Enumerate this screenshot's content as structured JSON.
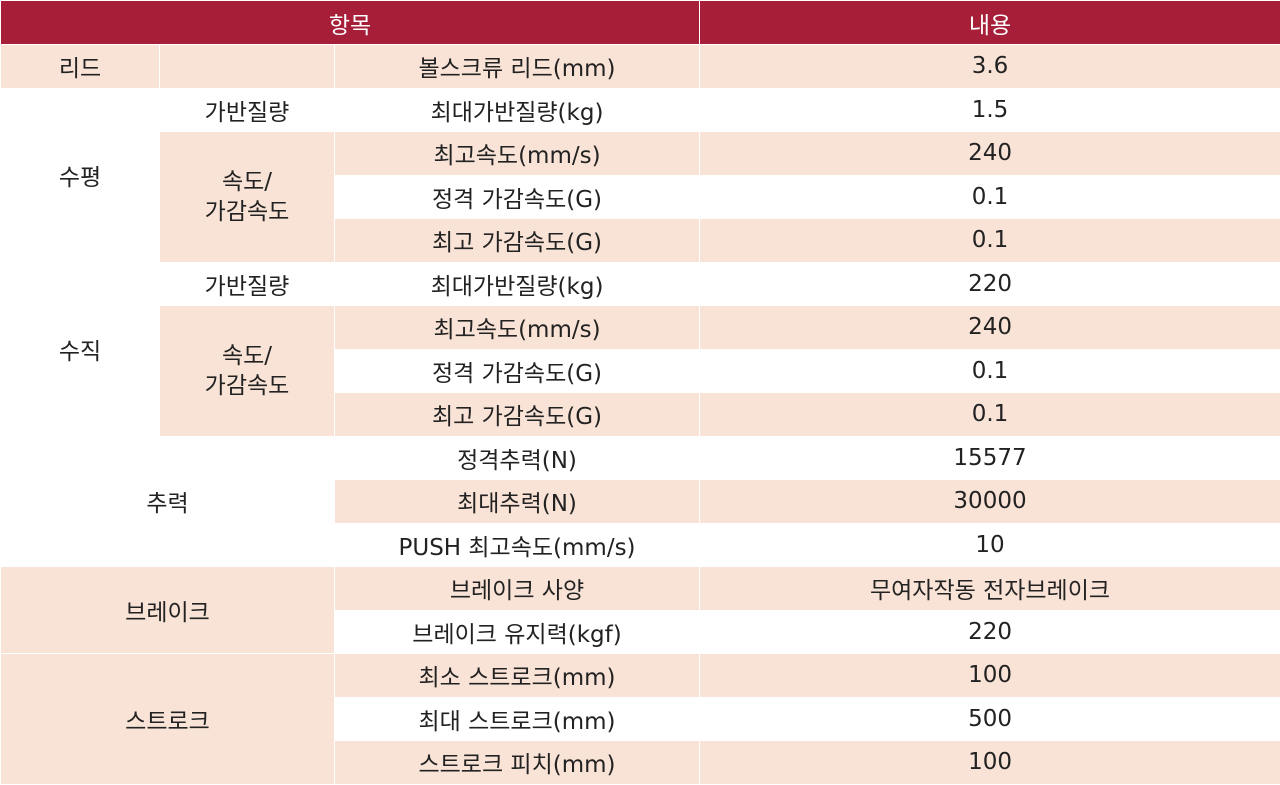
{
  "header": {
    "item": "항목",
    "content": "내용"
  },
  "lead": {
    "category": "리드",
    "label": "볼스크류 리드(mm)",
    "value": "3.6"
  },
  "horizontal": {
    "category": "수평",
    "payload": {
      "sub": "가반질량",
      "label": "최대가반질량(kg)",
      "value": "1.5"
    },
    "speed": {
      "sub_line1": "속도/",
      "sub_line2": "가감속도",
      "rows": [
        {
          "label": "최고속도(mm/s)",
          "value": "240"
        },
        {
          "label": "정격 가감속도(G)",
          "value": "0.1"
        },
        {
          "label": "최고 가감속도(G)",
          "value": "0.1"
        }
      ]
    }
  },
  "vertical": {
    "category": "수직",
    "payload": {
      "sub": "가반질량",
      "label": "최대가반질량(kg)",
      "value": "220"
    },
    "speed": {
      "sub_line1": "속도/",
      "sub_line2": "가감속도",
      "rows": [
        {
          "label": "최고속도(mm/s)",
          "value": "240"
        },
        {
          "label": "정격 가감속도(G)",
          "value": "0.1"
        },
        {
          "label": "최고 가감속도(G)",
          "value": "0.1"
        }
      ]
    }
  },
  "thrust": {
    "category": "추력",
    "rows": [
      {
        "label": "정격추력(N)",
        "value": "15577"
      },
      {
        "label": "최대추력(N)",
        "value": "30000"
      },
      {
        "label": "PUSH 최고속도(mm/s)",
        "value": "10"
      }
    ]
  },
  "brake": {
    "category": "브레이크",
    "rows": [
      {
        "label": "브레이크 사양",
        "value": "무여자작동 전자브레이크"
      },
      {
        "label": "브레이크 유지력(kgf)",
        "value": "220"
      }
    ]
  },
  "stroke": {
    "category": "스트로크",
    "rows": [
      {
        "label": "최소 스트로크(mm)",
        "value": "100"
      },
      {
        "label": "최대 스트로크(mm)",
        "value": "500"
      },
      {
        "label": "스트로크 피치(mm)",
        "value": "100"
      }
    ]
  }
}
